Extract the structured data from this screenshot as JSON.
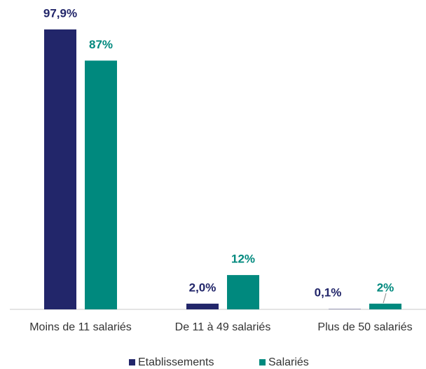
{
  "chart_data": {
    "type": "bar",
    "categories": [
      "Moins de 11 salariés",
      "De 11 à 49 salariés",
      "Plus de 50 salariés"
    ],
    "series": [
      {
        "name": "Etablissements",
        "color": "#22266a",
        "values": [
          97.9,
          2.0,
          0.1
        ],
        "value_labels": [
          "97,9%",
          "2,0%",
          "0,1%"
        ]
      },
      {
        "name": "Salariés",
        "color": "#00897e",
        "values": [
          87,
          12,
          2
        ],
        "value_labels": [
          "87%",
          "12%",
          "2%"
        ]
      }
    ],
    "ylim": [
      0,
      100
    ]
  }
}
